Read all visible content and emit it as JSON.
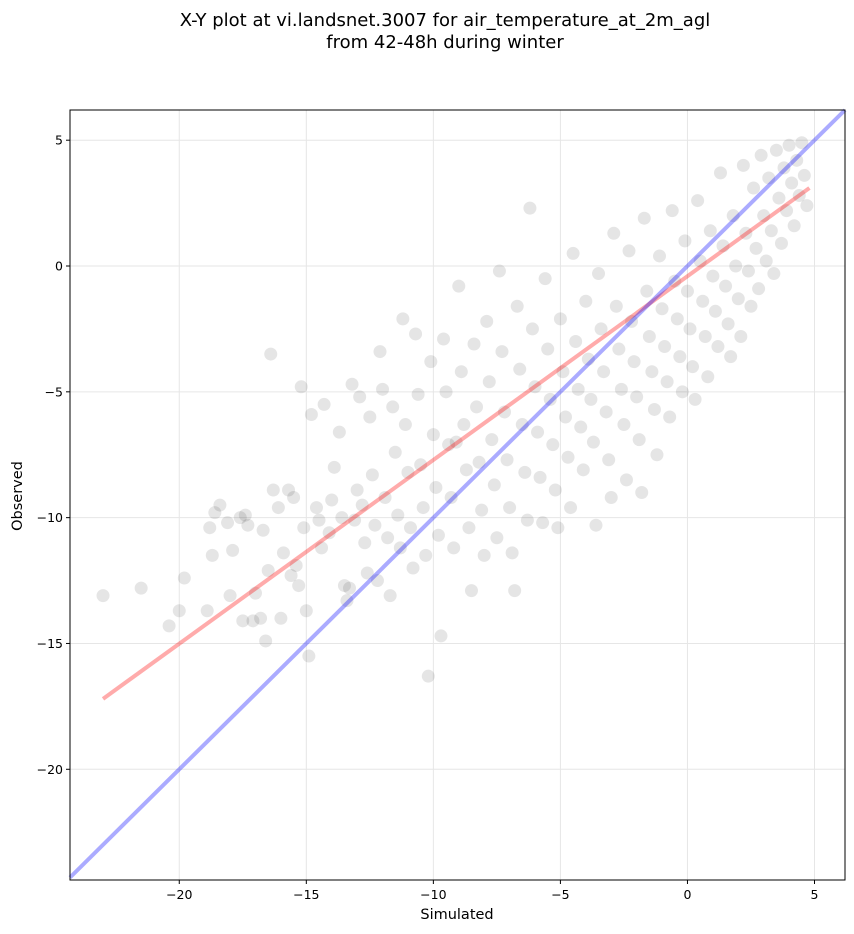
{
  "chart_data": {
    "type": "scatter",
    "title_lines": [
      "X-Y plot at vi.landsnet.3007 for air_temperature_at_2m_agl",
      "from 42-48h during winter"
    ],
    "xlabel": "Simulated",
    "ylabel": "Observed",
    "xlim": [
      -24.3,
      6.2
    ],
    "ylim": [
      -24.4,
      6.2
    ],
    "grid": true,
    "x_ticks": [
      -20,
      -15,
      -10,
      -5,
      0,
      5
    ],
    "y_ticks": [
      5,
      0,
      -5,
      -10,
      -15,
      -20
    ],
    "x_tick_labels": [
      "−20",
      "−15",
      "−10",
      "−5",
      "0",
      "5"
    ],
    "y_tick_labels": [
      "5",
      "0",
      "−5",
      "−10",
      "−15",
      "−20"
    ],
    "point_color": "#000000",
    "point_opacity": 0.1,
    "points": [
      [
        -23.0,
        -13.1
      ],
      [
        -21.5,
        -12.8
      ],
      [
        -20.4,
        -14.3
      ],
      [
        -20.0,
        -13.7
      ],
      [
        -19.8,
        -12.4
      ],
      [
        -18.9,
        -13.7
      ],
      [
        -18.8,
        -10.4
      ],
      [
        -18.7,
        -11.5
      ],
      [
        -18.6,
        -9.8
      ],
      [
        -18.4,
        -9.5
      ],
      [
        -18.1,
        -10.2
      ],
      [
        -18.0,
        -13.1
      ],
      [
        -17.9,
        -11.3
      ],
      [
        -17.6,
        -10.0
      ],
      [
        -17.5,
        -14.1
      ],
      [
        -17.4,
        -9.9
      ],
      [
        -17.3,
        -10.3
      ],
      [
        -17.1,
        -14.1
      ],
      [
        -17.0,
        -13.0
      ],
      [
        -16.8,
        -14.0
      ],
      [
        -16.7,
        -10.5
      ],
      [
        -16.6,
        -14.9
      ],
      [
        -16.5,
        -12.1
      ],
      [
        -16.4,
        -3.5
      ],
      [
        -16.3,
        -8.9
      ],
      [
        -16.1,
        -9.6
      ],
      [
        -16.0,
        -14.0
      ],
      [
        -15.9,
        -11.4
      ],
      [
        -15.7,
        -8.9
      ],
      [
        -15.6,
        -12.3
      ],
      [
        -15.5,
        -9.2
      ],
      [
        -15.4,
        -11.9
      ],
      [
        -15.3,
        -12.7
      ],
      [
        -15.2,
        -4.8
      ],
      [
        -15.1,
        -10.4
      ],
      [
        -15.0,
        -13.7
      ],
      [
        -14.9,
        -15.5
      ],
      [
        -14.8,
        -5.9
      ],
      [
        -14.6,
        -9.6
      ],
      [
        -14.5,
        -10.1
      ],
      [
        -14.4,
        -11.2
      ],
      [
        -14.3,
        -5.5
      ],
      [
        -14.1,
        -10.6
      ],
      [
        -14.0,
        -9.3
      ],
      [
        -13.9,
        -8.0
      ],
      [
        -13.7,
        -6.6
      ],
      [
        -13.6,
        -10.0
      ],
      [
        -13.5,
        -12.7
      ],
      [
        -13.4,
        -13.3
      ],
      [
        -13.3,
        -12.8
      ],
      [
        -13.2,
        -4.7
      ],
      [
        -13.1,
        -10.1
      ],
      [
        -13.0,
        -8.9
      ],
      [
        -12.9,
        -5.2
      ],
      [
        -12.8,
        -9.5
      ],
      [
        -12.7,
        -11.0
      ],
      [
        -12.6,
        -12.2
      ],
      [
        -12.5,
        -6.0
      ],
      [
        -12.4,
        -8.3
      ],
      [
        -12.3,
        -10.3
      ],
      [
        -12.2,
        -12.5
      ],
      [
        -12.1,
        -3.4
      ],
      [
        -12.0,
        -4.9
      ],
      [
        -11.9,
        -9.2
      ],
      [
        -11.8,
        -10.8
      ],
      [
        -11.7,
        -13.1
      ],
      [
        -11.6,
        -5.6
      ],
      [
        -11.5,
        -7.4
      ],
      [
        -11.4,
        -9.9
      ],
      [
        -11.3,
        -11.2
      ],
      [
        -11.2,
        -2.1
      ],
      [
        -11.1,
        -6.3
      ],
      [
        -11.0,
        -8.2
      ],
      [
        -10.9,
        -10.4
      ],
      [
        -10.8,
        -12.0
      ],
      [
        -10.7,
        -2.7
      ],
      [
        -10.6,
        -5.1
      ],
      [
        -10.5,
        -7.9
      ],
      [
        -10.4,
        -9.6
      ],
      [
        -10.3,
        -11.5
      ],
      [
        -10.2,
        -16.3
      ],
      [
        -10.1,
        -3.8
      ],
      [
        -10.0,
        -6.7
      ],
      [
        -9.9,
        -8.8
      ],
      [
        -9.8,
        -10.7
      ],
      [
        -9.7,
        -14.7
      ],
      [
        -9.6,
        -2.9
      ],
      [
        -9.5,
        -5.0
      ],
      [
        -9.4,
        -7.1
      ],
      [
        -9.3,
        -9.2
      ],
      [
        -9.2,
        -11.2
      ],
      [
        -9.1,
        -7.0
      ],
      [
        -9.0,
        -0.8
      ],
      [
        -8.9,
        -4.2
      ],
      [
        -8.8,
        -6.3
      ],
      [
        -8.7,
        -8.1
      ],
      [
        -8.6,
        -10.4
      ],
      [
        -8.5,
        -12.9
      ],
      [
        -8.4,
        -3.1
      ],
      [
        -8.3,
        -5.6
      ],
      [
        -8.2,
        -7.8
      ],
      [
        -8.1,
        -9.7
      ],
      [
        -8.0,
        -11.5
      ],
      [
        -7.9,
        -2.2
      ],
      [
        -7.8,
        -4.6
      ],
      [
        -7.7,
        -6.9
      ],
      [
        -7.6,
        -8.7
      ],
      [
        -7.5,
        -10.8
      ],
      [
        -7.4,
        -0.2
      ],
      [
        -7.3,
        -3.4
      ],
      [
        -7.2,
        -5.8
      ],
      [
        -7.1,
        -7.7
      ],
      [
        -7.0,
        -9.6
      ],
      [
        -6.9,
        -11.4
      ],
      [
        -6.8,
        -12.9
      ],
      [
        -6.7,
        -1.6
      ],
      [
        -6.6,
        -4.1
      ],
      [
        -6.5,
        -6.3
      ],
      [
        -6.4,
        -8.2
      ],
      [
        -6.3,
        -10.1
      ],
      [
        -6.2,
        2.3
      ],
      [
        -6.1,
        -2.5
      ],
      [
        -6.0,
        -4.8
      ],
      [
        -5.9,
        -6.6
      ],
      [
        -5.8,
        -8.4
      ],
      [
        -5.7,
        -10.2
      ],
      [
        -5.6,
        -0.5
      ],
      [
        -5.5,
        -3.3
      ],
      [
        -5.4,
        -5.3
      ],
      [
        -5.3,
        -7.1
      ],
      [
        -5.2,
        -8.9
      ],
      [
        -5.1,
        -10.4
      ],
      [
        -5.0,
        -2.1
      ],
      [
        -4.9,
        -4.2
      ],
      [
        -4.8,
        -6.0
      ],
      [
        -4.7,
        -7.6
      ],
      [
        -4.6,
        -9.6
      ],
      [
        -4.5,
        0.5
      ],
      [
        -4.4,
        -3.0
      ],
      [
        -4.3,
        -4.9
      ],
      [
        -4.2,
        -6.4
      ],
      [
        -4.1,
        -8.1
      ],
      [
        -4.0,
        -1.4
      ],
      [
        -3.9,
        -3.7
      ],
      [
        -3.8,
        -5.3
      ],
      [
        -3.7,
        -7.0
      ],
      [
        -3.6,
        -10.3
      ],
      [
        -3.5,
        -0.3
      ],
      [
        -3.4,
        -2.5
      ],
      [
        -3.3,
        -4.2
      ],
      [
        -3.2,
        -5.8
      ],
      [
        -3.1,
        -7.7
      ],
      [
        -3.0,
        -9.2
      ],
      [
        -2.9,
        1.3
      ],
      [
        -2.8,
        -1.6
      ],
      [
        -2.7,
        -3.3
      ],
      [
        -2.6,
        -4.9
      ],
      [
        -2.5,
        -6.3
      ],
      [
        -2.4,
        -8.5
      ],
      [
        -2.3,
        0.6
      ],
      [
        -2.2,
        -2.2
      ],
      [
        -2.1,
        -3.8
      ],
      [
        -2.0,
        -5.2
      ],
      [
        -1.9,
        -6.9
      ],
      [
        -1.8,
        -9.0
      ],
      [
        -1.7,
        1.9
      ],
      [
        -1.6,
        -1.0
      ],
      [
        -1.5,
        -2.8
      ],
      [
        -1.4,
        -4.2
      ],
      [
        -1.3,
        -5.7
      ],
      [
        -1.2,
        -7.5
      ],
      [
        -1.1,
        0.4
      ],
      [
        -1.0,
        -1.7
      ],
      [
        -0.9,
        -3.2
      ],
      [
        -0.8,
        -4.6
      ],
      [
        -0.7,
        -6.0
      ],
      [
        -0.6,
        2.2
      ],
      [
        -0.5,
        -0.6
      ],
      [
        -0.4,
        -2.1
      ],
      [
        -0.3,
        -3.6
      ],
      [
        -0.2,
        -5.0
      ],
      [
        -0.1,
        1.0
      ],
      [
        0.0,
        -1.0
      ],
      [
        0.1,
        -2.5
      ],
      [
        0.2,
        -4.0
      ],
      [
        0.3,
        -5.3
      ],
      [
        0.4,
        2.6
      ],
      [
        0.5,
        0.2
      ],
      [
        0.6,
        -1.4
      ],
      [
        0.7,
        -2.8
      ],
      [
        0.8,
        -4.4
      ],
      [
        0.9,
        1.4
      ],
      [
        1.0,
        -0.4
      ],
      [
        1.1,
        -1.8
      ],
      [
        1.2,
        -3.2
      ],
      [
        1.3,
        3.7
      ],
      [
        1.4,
        0.8
      ],
      [
        1.5,
        -0.8
      ],
      [
        1.6,
        -2.3
      ],
      [
        1.7,
        -3.6
      ],
      [
        1.8,
        2.0
      ],
      [
        1.9,
        0.0
      ],
      [
        2.0,
        -1.3
      ],
      [
        2.1,
        -2.8
      ],
      [
        2.2,
        4.0
      ],
      [
        2.3,
        1.3
      ],
      [
        2.4,
        -0.2
      ],
      [
        2.5,
        -1.6
      ],
      [
        2.6,
        3.1
      ],
      [
        2.7,
        0.7
      ],
      [
        2.8,
        -0.9
      ],
      [
        2.9,
        4.4
      ],
      [
        3.0,
        2.0
      ],
      [
        3.1,
        0.2
      ],
      [
        3.2,
        3.5
      ],
      [
        3.3,
        1.4
      ],
      [
        3.4,
        -0.3
      ],
      [
        3.5,
        4.6
      ],
      [
        3.6,
        2.7
      ],
      [
        3.7,
        0.9
      ],
      [
        3.8,
        3.9
      ],
      [
        3.9,
        2.2
      ],
      [
        4.0,
        4.8
      ],
      [
        4.1,
        3.3
      ],
      [
        4.2,
        1.6
      ],
      [
        4.3,
        4.2
      ],
      [
        4.4,
        2.8
      ],
      [
        4.5,
        4.9
      ],
      [
        4.6,
        3.6
      ],
      [
        4.7,
        2.4
      ]
    ],
    "series": [
      {
        "name": "",
        "type": "line",
        "color": "#ff0000",
        "opacity": 0.33,
        "x": [
          -23.0,
          4.8
        ],
        "y": [
          -17.2,
          3.1
        ]
      },
      {
        "name": "",
        "type": "line",
        "color": "#0000ff",
        "opacity": 0.33,
        "x": [
          -24.3,
          6.2
        ],
        "y": [
          -24.3,
          6.2
        ]
      }
    ]
  }
}
